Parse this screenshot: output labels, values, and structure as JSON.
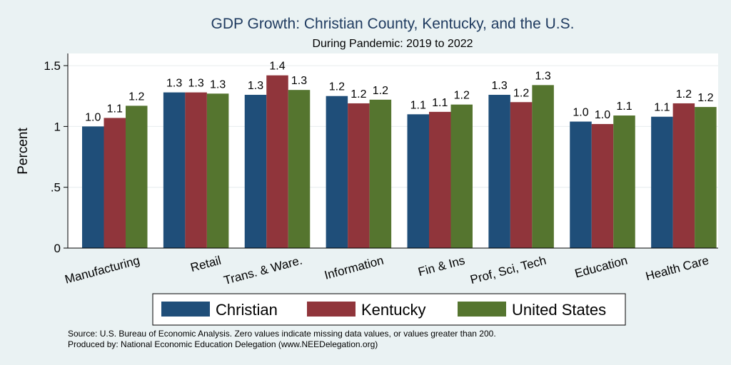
{
  "chart_data": {
    "type": "bar",
    "title": "GDP Growth: Christian County, Kentucky, and the U.S.",
    "subtitle": "During Pandemic: 2019 to 2022",
    "ylabel": "Percent",
    "xlabel": "",
    "ylim": [
      0,
      1.6
    ],
    "yticks": [
      0,
      0.5,
      1,
      1.5
    ],
    "ytick_labels": [
      "0",
      ".5",
      "1",
      "1.5"
    ],
    "grid": true,
    "legend_position": "bottom",
    "categories": [
      "Manufacturing",
      "Retail",
      "Trans. & Ware.",
      "Information",
      "Fin & Ins",
      "Prof, Sci, Tech",
      "Education",
      "Health Care"
    ],
    "series": [
      {
        "name": "Christian",
        "color": "#1f4e79",
        "values": [
          1.0,
          1.28,
          1.26,
          1.25,
          1.1,
          1.26,
          1.04,
          1.08
        ],
        "labels": [
          "1.0",
          "1.3",
          "1.3",
          "1.2",
          "1.1",
          "1.3",
          "1.0",
          "1.1"
        ]
      },
      {
        "name": "Kentucky",
        "color": "#90353b",
        "values": [
          1.07,
          1.28,
          1.42,
          1.19,
          1.12,
          1.2,
          1.02,
          1.19
        ],
        "labels": [
          "1.1",
          "1.3",
          "1.4",
          "1.2",
          "1.1",
          "1.2",
          "1.0",
          "1.2"
        ]
      },
      {
        "name": "United States",
        "color": "#55752f",
        "values": [
          1.17,
          1.27,
          1.3,
          1.22,
          1.18,
          1.34,
          1.09,
          1.16
        ],
        "labels": [
          "1.2",
          "1.3",
          "1.3",
          "1.2",
          "1.2",
          "1.3",
          "1.1",
          "1.2"
        ]
      }
    ]
  },
  "footnotes": [
    "Source: U.S. Bureau of Economic Analysis. Zero values indicate missing data values, or values greater than 200.",
    "Produced by: National Economic Education Delegation (www.NEEDelegation.org)"
  ]
}
